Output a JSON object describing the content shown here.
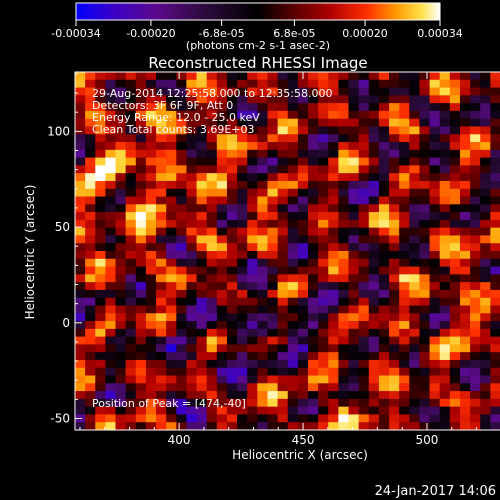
{
  "chart_data": {
    "type": "heatmap",
    "title": "Reconstructed RHESSI Image",
    "xlabel": "Heliocentric X (arcsec)",
    "ylabel": "Heliocentric Y (arcsec)",
    "xlim": [
      358,
      546
    ],
    "ylim": [
      -56,
      131
    ],
    "x_ticks": [
      400,
      450,
      500
    ],
    "y_ticks": [
      -50,
      0,
      50,
      100
    ],
    "grid": false,
    "annotations": [
      "29-Aug-2014 12:25:58.000 to 12:35:58.000",
      "Detectors: 3F 6F 9F, Att 0",
      "Energy Range: 12.0 - 25.0 keV",
      "Clean     Total counts: 3.69E+03"
    ],
    "peak_label": "Position of Peak = [474,-40]",
    "peak": {
      "x": 474,
      "y": -40
    },
    "colorbar": {
      "min": -0.00034,
      "max": 0.00034,
      "tick_labels": [
        "-0.00034",
        "-0.00020",
        "-6.8e-05",
        "6.8e-05",
        "0.00020",
        "0.00034"
      ],
      "tick_values": [
        -0.00034,
        -0.0002,
        -6.8e-05,
        6.8e-05,
        0.0002,
        0.00034
      ],
      "units_label": "(photons cm-2 s-1 asec-2)",
      "colormap": [
        "#0000ff",
        "#3a00c8",
        "#5b0a8c",
        "#2a0a3a",
        "#000000",
        "#5a0000",
        "#b00000",
        "#ff3000",
        "#ff9a00",
        "#ffe24a",
        "#ffffff"
      ]
    },
    "grid_size": 46,
    "value_range": [
      -0.00034,
      0.00034
    ]
  },
  "footer": {
    "date": "24-Jan-2017 14:06"
  }
}
